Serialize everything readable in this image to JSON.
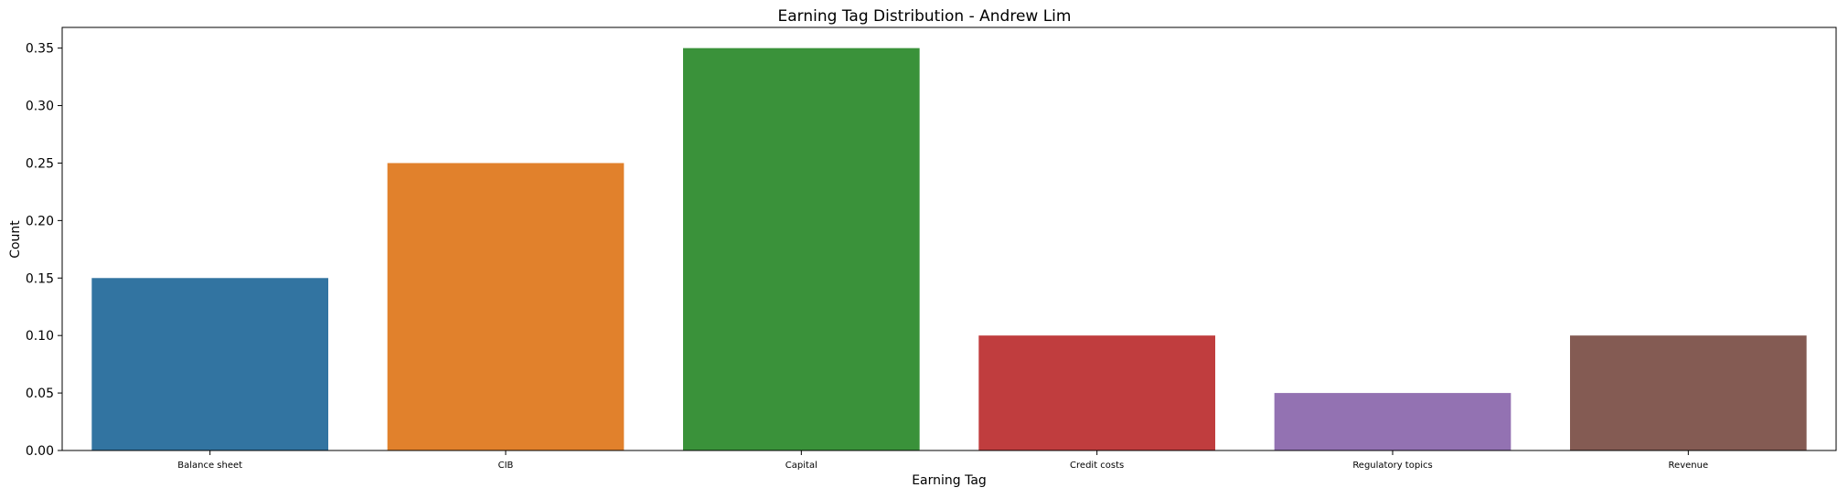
{
  "chart_data": {
    "type": "bar",
    "title": "Earning Tag Distribution - Andrew Lim",
    "xlabel": "Earning Tag",
    "ylabel": "Count",
    "categories": [
      "Balance sheet",
      "CIB",
      "Capital",
      "Credit costs",
      "Regulatory topics",
      "Revenue"
    ],
    "values": [
      0.15,
      0.25,
      0.35,
      0.1,
      0.05,
      0.1
    ],
    "colors": [
      "#3274a1",
      "#e1812c",
      "#3a923a",
      "#c03d3e",
      "#9372b2",
      "#845b53"
    ],
    "ylim": [
      0,
      0.368
    ],
    "yticks": [
      0.0,
      0.05,
      0.1,
      0.15,
      0.2,
      0.25,
      0.3,
      0.35
    ],
    "ytick_labels": [
      "0.00",
      "0.05",
      "0.10",
      "0.15",
      "0.20",
      "0.25",
      "0.30",
      "0.35"
    ],
    "grid": false,
    "legend": "none"
  }
}
